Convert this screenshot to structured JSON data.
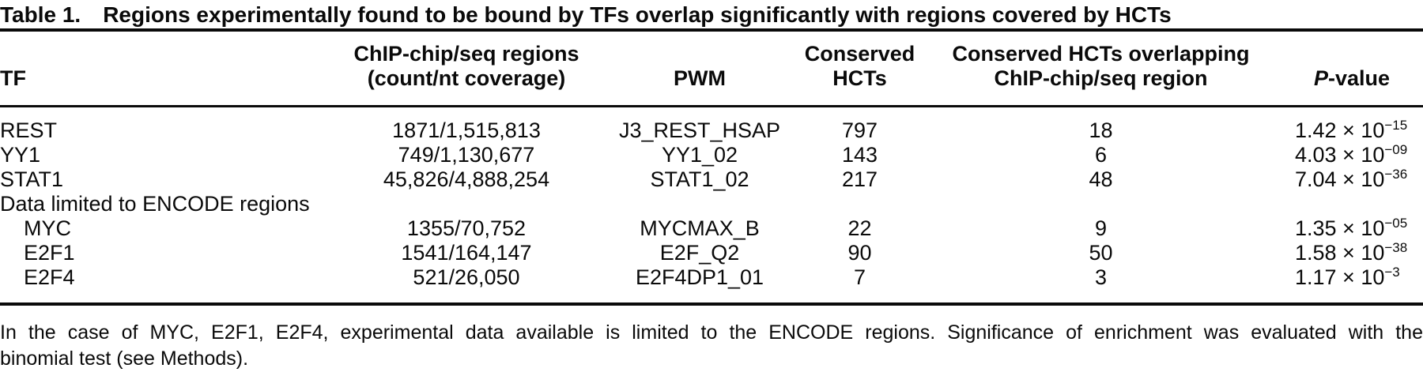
{
  "caption": {
    "label": "Table 1.",
    "text": "Regions experimentally found to be bound by TFs overlap significantly with regions covered by HCTs"
  },
  "table": {
    "columns": [
      {
        "label_line1": "TF"
      },
      {
        "label_line1": "ChIP-chip/seq regions",
        "label_line2": "(count/nt coverage)"
      },
      {
        "label_line1": "PWM"
      },
      {
        "label_line1": "Conserved",
        "label_line2": "HCTs"
      },
      {
        "label_line1": "Conserved HCTs overlapping",
        "label_line2": "ChIP-chip/seq region"
      },
      {
        "label_italic": "P",
        "label_rest": "-value"
      }
    ],
    "pvalue_format": {
      "times": "×",
      "base": "10"
    },
    "rows": [
      {
        "tf": "REST",
        "indent": false,
        "regions": "1871/1,515,813",
        "pwm": "J3_REST_HSAP",
        "hcts": "797",
        "overlap": "18",
        "p_coef": "1.42",
        "p_exp": "−15"
      },
      {
        "tf": "YY1",
        "indent": false,
        "regions": "749/1,130,677",
        "pwm": "YY1_02",
        "hcts": "143",
        "overlap": "6",
        "p_coef": "4.03",
        "p_exp": "−09"
      },
      {
        "tf": "STAT1",
        "indent": false,
        "regions": "45,826/4,888,254",
        "pwm": "STAT1_02",
        "hcts": "217",
        "overlap": "48",
        "p_coef": "7.04",
        "p_exp": "−36"
      },
      {
        "section": "Data limited to ENCODE regions"
      },
      {
        "tf": "MYC",
        "indent": true,
        "regions": "1355/70,752",
        "pwm": "MYCMAX_B",
        "hcts": "22",
        "overlap": "9",
        "p_coef": "1.35",
        "p_exp": "−05"
      },
      {
        "tf": "E2F1",
        "indent": true,
        "regions": "1541/164,147",
        "pwm": "E2F_Q2",
        "hcts": "90",
        "overlap": "50",
        "p_coef": "1.58",
        "p_exp": "−38"
      },
      {
        "tf": "E2F4",
        "indent": true,
        "regions": "521/26,050",
        "pwm": "E2F4DP1_01",
        "hcts": "7",
        "overlap": "3",
        "p_coef": "1.17",
        "p_exp": "−3"
      }
    ]
  },
  "footnote": {
    "line1": "In the case of MYC, E2F1, E2F4, experimental data available is limited to the ENCODE regions. Significance of enrichment was evaluated with the",
    "line2": "binomial test (see Methods)."
  }
}
